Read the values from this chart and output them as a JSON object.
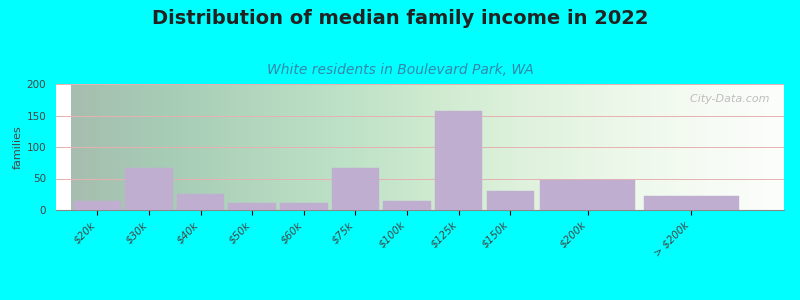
{
  "title": "Distribution of median family income in 2022",
  "subtitle": "White residents in Boulevard Park, WA",
  "ylabel": "families",
  "categories": [
    "$20k",
    "$30k",
    "$40k",
    "$50k",
    "$60k",
    "$75k",
    "$100k",
    "$125k",
    "$150k",
    "$200k",
    "> $200k"
  ],
  "values": [
    15,
    67,
    25,
    11,
    11,
    67,
    15,
    157,
    30,
    47,
    22
  ],
  "bar_positions": [
    0,
    1,
    2,
    3,
    4,
    5,
    6,
    7,
    8,
    9,
    11
  ],
  "bar_widths": [
    1,
    1,
    1,
    1,
    1,
    1,
    1,
    1,
    1,
    2,
    2
  ],
  "bar_color": "#c0aed0",
  "bar_edge_color": "#c0aed0",
  "background_color": "#00ffff",
  "grid_color": "#e8b0b0",
  "title_fontsize": 14,
  "subtitle_fontsize": 10,
  "subtitle_color": "#3388aa",
  "ylabel_fontsize": 8,
  "tick_fontsize": 7.5,
  "ylim": [
    0,
    200
  ],
  "yticks": [
    0,
    50,
    100,
    150,
    200
  ],
  "watermark": "  City-Data.com"
}
